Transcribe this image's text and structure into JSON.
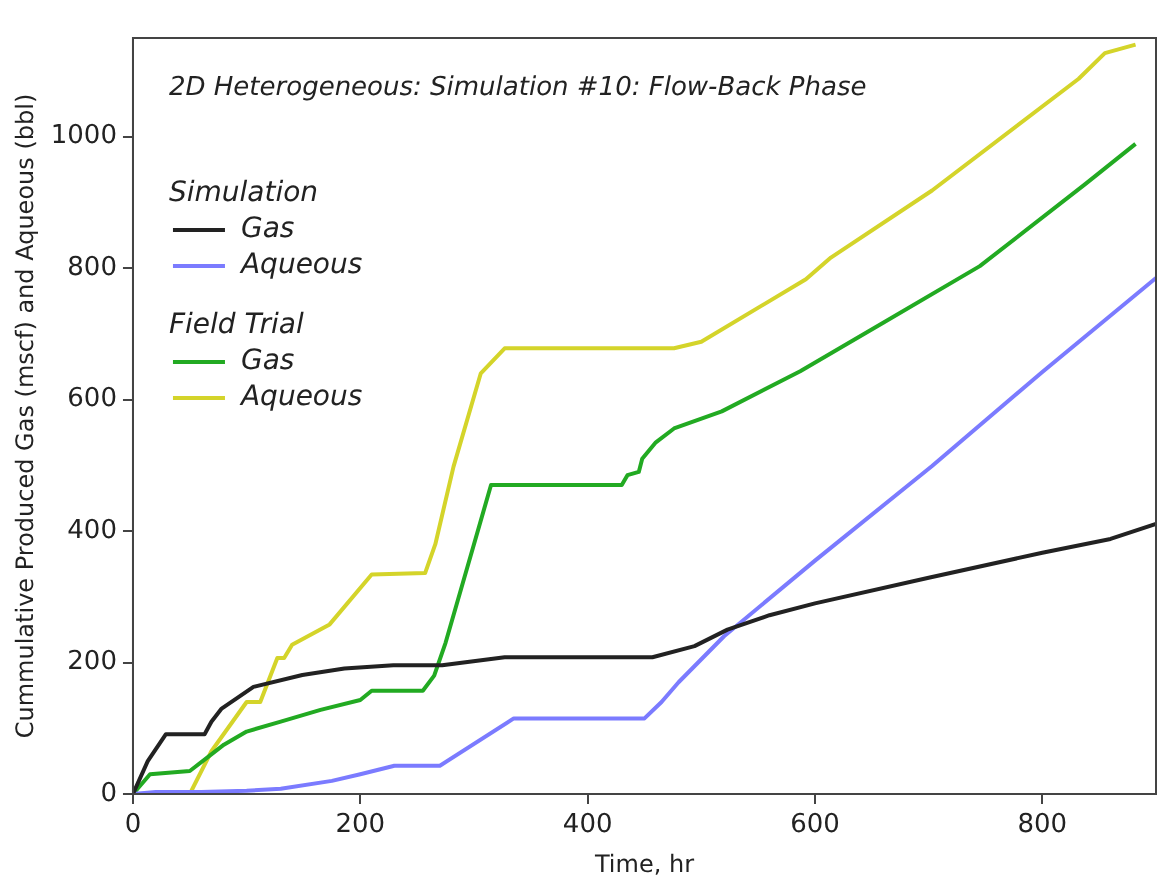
{
  "chart_data": {
    "type": "line",
    "title": "2D Heterogeneous: Simulation #10: Flow-Back Phase",
    "xlabel": "Time, hr",
    "ylabel": "Cummulative Produced Gas (mscf) and Aqueous (bbl)",
    "annotations": [
      "Simulation",
      "Field Trial"
    ],
    "xlim": [
      0,
      900
    ],
    "ylim": [
      0,
      1150
    ],
    "xticks": [
      0,
      200,
      400,
      600,
      800
    ],
    "yticks": [
      0,
      200,
      400,
      600,
      800,
      1000
    ],
    "grid": false,
    "legend": "top left",
    "marker": "none",
    "line_style": "solid",
    "series": [
      {
        "name": "Gas",
        "color": "#222222",
        "x": [
          0,
          13,
          29,
          63,
          69,
          78,
          106,
          149,
          186,
          229,
          272,
          327,
          457,
          494,
          523,
          560,
          600,
          700,
          800,
          860,
          900
        ],
        "values": [
          0,
          50,
          91,
          91,
          110,
          130,
          163,
          181,
          191,
          196,
          196,
          208,
          208,
          225,
          250,
          272,
          290,
          329,
          367,
          388,
          411
        ]
      },
      {
        "name": "Aqueous",
        "color": "#7b7bff",
        "x": [
          0,
          20,
          60,
          100,
          130,
          175,
          200,
          230,
          270,
          335,
          450,
          465,
          480,
          520,
          600,
          703,
          800,
          900
        ],
        "values": [
          0,
          3,
          3,
          5,
          8,
          20,
          30,
          43,
          43,
          115,
          115,
          140,
          170,
          240,
          355,
          499,
          642,
          785
        ]
      },
      {
        "name": "Gas",
        "color": "#22aa22",
        "x": [
          0,
          15,
          50,
          65,
          80,
          100,
          130,
          165,
          200,
          210,
          255,
          265,
          275,
          300,
          315,
          430,
          435,
          445,
          448,
          460,
          476,
          518,
          587,
          660,
          745,
          838,
          882
        ],
        "values": [
          0,
          30,
          35,
          55,
          75,
          95,
          110,
          128,
          143,
          157,
          157,
          180,
          230,
          380,
          470,
          470,
          485,
          490,
          510,
          535,
          556,
          582,
          643,
          717,
          803,
          928,
          989
        ]
      },
      {
        "name": "Aqueous",
        "color": "#d4d42a",
        "x": [
          50,
          69,
          100,
          112,
          127,
          133,
          140,
          173,
          210,
          257,
          266,
          282,
          306,
          327,
          476,
          500,
          592,
          614,
          703,
          832,
          855,
          882
        ],
        "values": [
          0,
          65,
          140,
          140,
          207,
          207,
          227,
          258,
          334,
          336,
          380,
          498,
          640,
          678,
          678,
          688,
          783,
          816,
          918,
          1088,
          1127,
          1140
        ]
      }
    ]
  }
}
